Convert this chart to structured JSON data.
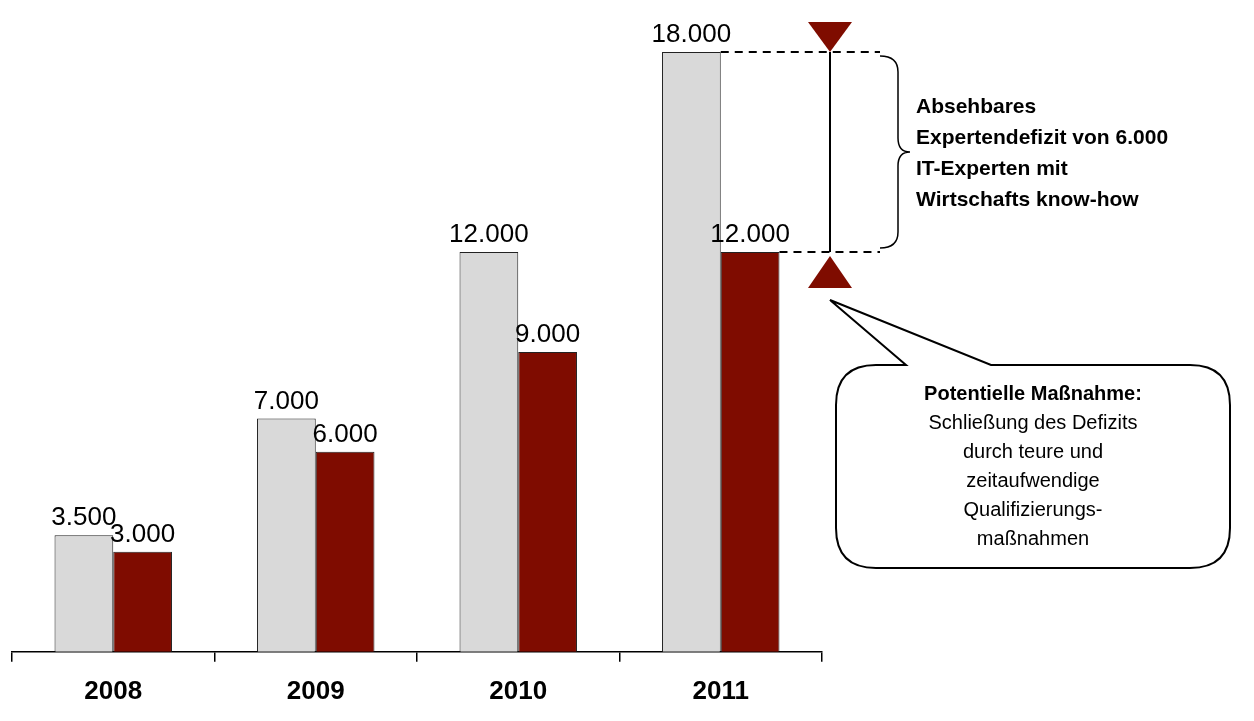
{
  "chart_data": {
    "type": "bar",
    "categories": [
      "2008",
      "2009",
      "2010",
      "2011"
    ],
    "series": [
      {
        "color": "#d9d9d9",
        "values": [
          3500,
          7000,
          12000,
          18000
        ],
        "value_labels": [
          "3.500",
          "7.000",
          "12.000",
          "18.000"
        ]
      },
      {
        "color": "#7f0c00",
        "values": [
          3000,
          6000,
          9000,
          12000
        ],
        "value_labels": [
          "3.000",
          "6.000",
          "9.000",
          "12.000"
        ]
      }
    ],
    "ylim": [
      0,
      18000
    ],
    "tick_labels": "x",
    "grid": false,
    "legend": false,
    "annotations": [
      "Absehbares\nExpertendefizit von 6.000\nIT-Experten mit\nWirtschafts know-how",
      "Potentielle Maßnahme:",
      "Schließung des Defizits\ndurch teure und\nzeitaufwendige\nQualifizierungs-\nmaßnahmen"
    ]
  }
}
